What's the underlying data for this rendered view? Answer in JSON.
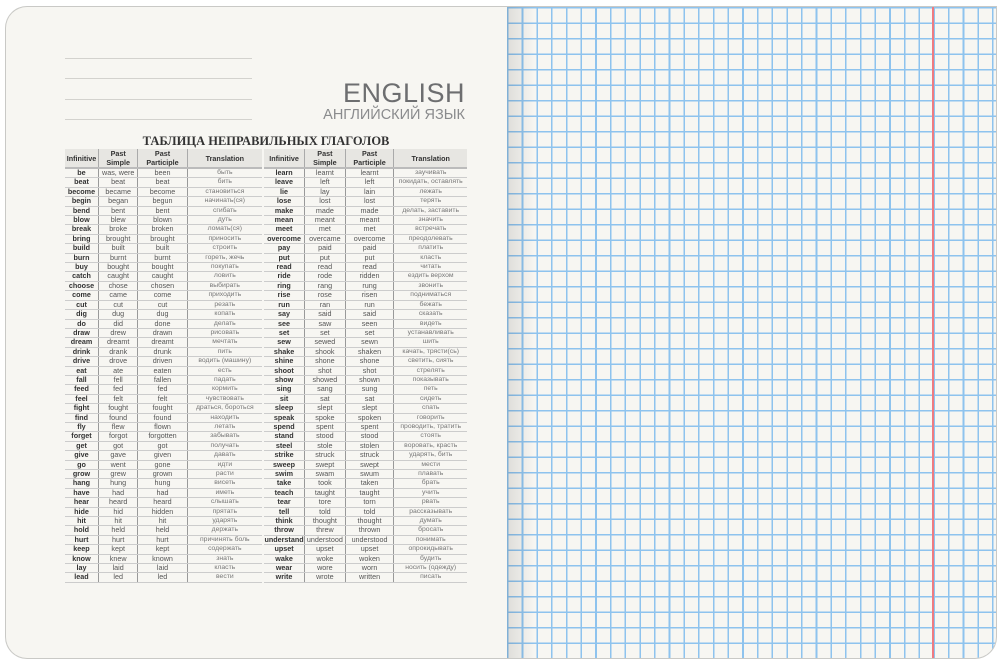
{
  "header": {
    "title": "ENGLISH",
    "subtitle": "АНГЛИЙСКИЙ ЯЗЫК"
  },
  "table_title": "ТАБЛИЦА НЕПРАВИЛЬНЫХ ГЛАГОЛОВ",
  "columns": [
    "Infinitive",
    "Past Simple",
    "Past Participle",
    "Translation"
  ],
  "colors": {
    "grid": "#8ec3ee",
    "margin_line": "#ef7a80",
    "paper": "#f7f6f2"
  },
  "left_table": [
    [
      "be",
      "was, were",
      "been",
      "быть"
    ],
    [
      "beat",
      "beat",
      "beat",
      "бить"
    ],
    [
      "become",
      "became",
      "become",
      "становиться"
    ],
    [
      "begin",
      "began",
      "begun",
      "начинать(ся)"
    ],
    [
      "bend",
      "bent",
      "bent",
      "сгибать"
    ],
    [
      "blow",
      "blew",
      "blown",
      "дуть"
    ],
    [
      "break",
      "broke",
      "broken",
      "ломать(ся)"
    ],
    [
      "bring",
      "brought",
      "brought",
      "приносить"
    ],
    [
      "build",
      "built",
      "built",
      "строить"
    ],
    [
      "burn",
      "burnt",
      "burnt",
      "гореть, жечь"
    ],
    [
      "buy",
      "bought",
      "bought",
      "покупать"
    ],
    [
      "catch",
      "caught",
      "caught",
      "ловить"
    ],
    [
      "choose",
      "chose",
      "chosen",
      "выбирать"
    ],
    [
      "come",
      "came",
      "come",
      "приходить"
    ],
    [
      "cut",
      "cut",
      "cut",
      "резать"
    ],
    [
      "dig",
      "dug",
      "dug",
      "копать"
    ],
    [
      "do",
      "did",
      "done",
      "делать"
    ],
    [
      "draw",
      "drew",
      "drawn",
      "рисовать"
    ],
    [
      "dream",
      "dreamt",
      "dreamt",
      "мечтать"
    ],
    [
      "drink",
      "drank",
      "drunk",
      "пить"
    ],
    [
      "drive",
      "drove",
      "driven",
      "водить (машину)"
    ],
    [
      "eat",
      "ate",
      "eaten",
      "есть"
    ],
    [
      "fall",
      "fell",
      "fallen",
      "падать"
    ],
    [
      "feed",
      "fed",
      "fed",
      "кормить"
    ],
    [
      "feel",
      "felt",
      "felt",
      "чувствовать"
    ],
    [
      "fight",
      "fought",
      "fought",
      "драться, бороться"
    ],
    [
      "find",
      "found",
      "found",
      "находить"
    ],
    [
      "fly",
      "flew",
      "flown",
      "летать"
    ],
    [
      "forget",
      "forgot",
      "forgotten",
      "забывать"
    ],
    [
      "get",
      "got",
      "got",
      "получать"
    ],
    [
      "give",
      "gave",
      "given",
      "давать"
    ],
    [
      "go",
      "went",
      "gone",
      "идти"
    ],
    [
      "grow",
      "grew",
      "grown",
      "расти"
    ],
    [
      "hang",
      "hung",
      "hung",
      "висеть"
    ],
    [
      "have",
      "had",
      "had",
      "иметь"
    ],
    [
      "hear",
      "heard",
      "heard",
      "слышать"
    ],
    [
      "hide",
      "hid",
      "hidden",
      "прятать"
    ],
    [
      "hit",
      "hit",
      "hit",
      "ударять"
    ],
    [
      "hold",
      "held",
      "held",
      "держать"
    ],
    [
      "hurt",
      "hurt",
      "hurt",
      "причинять боль"
    ],
    [
      "keep",
      "kept",
      "kept",
      "содержать"
    ],
    [
      "know",
      "knew",
      "known",
      "знать"
    ],
    [
      "lay",
      "laid",
      "laid",
      "класть"
    ],
    [
      "lead",
      "led",
      "led",
      "вести"
    ]
  ],
  "right_table": [
    [
      "learn",
      "learnt",
      "learnt",
      "заучивать"
    ],
    [
      "leave",
      "left",
      "left",
      "покидать, оставлять"
    ],
    [
      "lie",
      "lay",
      "lain",
      "лежать"
    ],
    [
      "lose",
      "lost",
      "lost",
      "терять"
    ],
    [
      "make",
      "made",
      "made",
      "делать, заставить"
    ],
    [
      "mean",
      "meant",
      "meant",
      "значить"
    ],
    [
      "meet",
      "met",
      "met",
      "встречать"
    ],
    [
      "overcome",
      "overcame",
      "overcome",
      "преодолевать"
    ],
    [
      "pay",
      "paid",
      "paid",
      "платить"
    ],
    [
      "put",
      "put",
      "put",
      "класть"
    ],
    [
      "read",
      "read",
      "read",
      "читать"
    ],
    [
      "ride",
      "rode",
      "ridden",
      "ездить верхом"
    ],
    [
      "ring",
      "rang",
      "rung",
      "звонить"
    ],
    [
      "rise",
      "rose",
      "risen",
      "подниматься"
    ],
    [
      "run",
      "ran",
      "run",
      "бежать"
    ],
    [
      "say",
      "said",
      "said",
      "сказать"
    ],
    [
      "see",
      "saw",
      "seen",
      "видеть"
    ],
    [
      "set",
      "set",
      "set",
      "устанавливать"
    ],
    [
      "sew",
      "sewed",
      "sewn",
      "шить"
    ],
    [
      "shake",
      "shook",
      "shaken",
      "качать, трясти(сь)"
    ],
    [
      "shine",
      "shone",
      "shone",
      "светить, сиять"
    ],
    [
      "shoot",
      "shot",
      "shot",
      "стрелять"
    ],
    [
      "show",
      "showed",
      "shown",
      "показывать"
    ],
    [
      "sing",
      "sang",
      "sung",
      "петь"
    ],
    [
      "sit",
      "sat",
      "sat",
      "сидеть"
    ],
    [
      "sleep",
      "slept",
      "slept",
      "спать"
    ],
    [
      "speak",
      "spoke",
      "spoken",
      "говорить"
    ],
    [
      "spend",
      "spent",
      "spent",
      "проводить, тратить"
    ],
    [
      "stand",
      "stood",
      "stood",
      "стоять"
    ],
    [
      "steel",
      "stole",
      "stolen",
      "воровать, красть"
    ],
    [
      "strike",
      "struck",
      "struck",
      "ударять, бить"
    ],
    [
      "sweep",
      "swept",
      "swept",
      "мести"
    ],
    [
      "swim",
      "swam",
      "swum",
      "плавать"
    ],
    [
      "take",
      "took",
      "taken",
      "брать"
    ],
    [
      "teach",
      "taught",
      "taught",
      "учить"
    ],
    [
      "tear",
      "tore",
      "torn",
      "рвать"
    ],
    [
      "tell",
      "told",
      "told",
      "рассказывать"
    ],
    [
      "think",
      "thought",
      "thought",
      "думать"
    ],
    [
      "throw",
      "threw",
      "thrown",
      "бросать"
    ],
    [
      "understand",
      "understood",
      "understood",
      "понимать"
    ],
    [
      "upset",
      "upset",
      "upset",
      "опрокидывать"
    ],
    [
      "wake",
      "woke",
      "woken",
      "будить"
    ],
    [
      "wear",
      "wore",
      "worn",
      "носить (одежду)"
    ],
    [
      "write",
      "wrote",
      "written",
      "писать"
    ]
  ]
}
